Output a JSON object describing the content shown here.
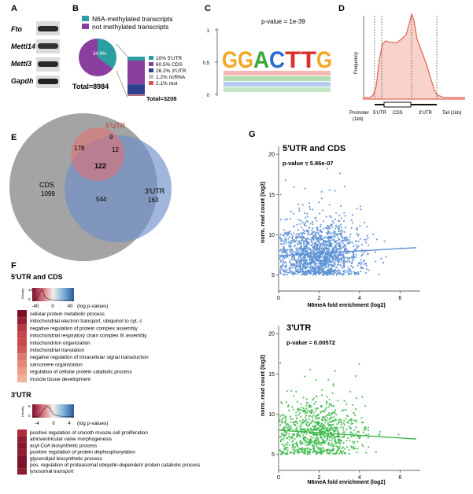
{
  "panels": {
    "A": "A",
    "B": "B",
    "C": "C",
    "D": "D",
    "E": "E",
    "F": "F",
    "G": "G"
  },
  "panelA": {
    "genes": [
      "Fto",
      "Mettl14",
      "Mettl3",
      "Gapdh"
    ]
  },
  "panelB": {
    "legend": [
      "N6A-methylated transcripts",
      "not methylated transcripts"
    ],
    "pie_label": "34.9%",
    "total1": "Total=8984",
    "stack_legend": [
      "10% 5'UTR",
      "60.5% CDS",
      "26.2% 3'UTR",
      "1.2% ncRNA",
      "2.1% rest"
    ],
    "total2": "Total=3208"
  },
  "panelC": {
    "pvalue": "p-value = 1e-39",
    "yticks": [
      "1",
      "0.5",
      "0"
    ],
    "motif": [
      "G",
      "G",
      "A",
      "C",
      "T",
      "T",
      "G"
    ]
  },
  "panelD": {
    "ylabel": "Frequency",
    "labels": [
      "Promoter",
      "(1kb)",
      "5'UTR",
      "CDS",
      "3'UTR",
      "Tail (1kb)"
    ]
  },
  "panelE": {
    "labels": {
      "utr5": "5'UTR",
      "cds": "CDS",
      "utr3": "3'UTR"
    },
    "counts": {
      "cds_only": "1099",
      "utr5_only": "9",
      "utr3_only": "163",
      "cds_utr5": "178",
      "utr5_utr3": "12",
      "all": "122",
      "cds_utr3": "544"
    }
  },
  "panelF": {
    "title1": "5'UTR and CDS",
    "legend1": {
      "density": "Density",
      "ticks": [
        "-40",
        "0",
        "40"
      ],
      "ylab": [
        "0",
        "12"
      ],
      "unit": "(log p-values)"
    },
    "terms1": [
      "cellular protein metabolic process",
      "mitochondrial electron transport, ubiquinol to cyt. c",
      "negative regulation of protein complex assembly",
      "mitochondrial respiratory chain complex III assembly",
      "mitochondrion organization",
      "mitochondrial translation",
      "negative regulation of intracellular signal transduction",
      "sarcomere organization",
      "regulation of cellular protein catabolic process",
      "muscle tissue development"
    ],
    "title2": "3'UTR",
    "legend2": {
      "density": "Density",
      "ticks": [
        "-4",
        "0",
        "4"
      ],
      "ylab": [
        "0",
        "6"
      ],
      "unit": "(log p-values)"
    },
    "terms2": [
      "positive regulation of smooth muscle cell proliferation",
      "atrioventricular valve morphogenesis",
      "acyl-CoA biosynthetic process",
      "positive regulation of protein dephosphorylation",
      "glycerolipid biosynthetic process",
      "pos. regulation of proteasomal ubiquitin-dependent protein catabolic process",
      "lysosomal transport"
    ]
  },
  "panelG": {
    "plot1": {
      "title": "5'UTR and CDS",
      "pvalue": "p-value = 5.86e-07",
      "ylabel": "norm. read count (log2)",
      "xlabel": "N6meA fold enrichment (log2)",
      "yticks": [
        "5",
        "10",
        "15",
        "20"
      ],
      "xticks": [
        "0",
        "2",
        "4",
        "6"
      ],
      "color": "#5b8fd4"
    },
    "plot2": {
      "title": "3'UTR",
      "pvalue": "p-value = 0.00572",
      "ylabel": "norm. read count (log2)",
      "xlabel": "N6meA fold enrichment (log2)",
      "yticks": [
        "5",
        "10",
        "15",
        "20"
      ],
      "xticks": [
        "0",
        "2",
        "4",
        "6"
      ],
      "color": "#3cb84a"
    }
  },
  "chart_data": [
    {
      "type": "pie",
      "title": "",
      "slices": [
        {
          "label": "N6A-methylated transcripts",
          "value": 34.9
        },
        {
          "label": "not methylated transcripts",
          "value": 65.1
        }
      ],
      "total": "Total=8984"
    },
    {
      "type": "bar",
      "title": "",
      "categories": [
        "5'UTR",
        "CDS",
        "3'UTR",
        "ncRNA",
        "rest"
      ],
      "values": [
        10,
        60.5,
        26.2,
        1.2,
        2.1
      ],
      "total": "Total=3208"
    },
    {
      "type": "scatter",
      "title": "5'UTR and CDS",
      "xlabel": "N6meA fold enrichment (log2)",
      "ylabel": "norm. read count (log2)",
      "xlim": [
        0,
        7
      ],
      "ylim": [
        3,
        21
      ],
      "fit": {
        "x": [
          0,
          6.8
        ],
        "y": [
          7.4,
          8.4
        ]
      }
    },
    {
      "type": "scatter",
      "title": "3'UTR",
      "xlabel": "N6meA fold enrichment (log2)",
      "ylabel": "norm. read count (log2)",
      "xlim": [
        0,
        7
      ],
      "ylim": [
        3,
        21
      ],
      "fit": {
        "x": [
          0,
          6.8
        ],
        "y": [
          8.0,
          6.9
        ]
      }
    }
  ]
}
